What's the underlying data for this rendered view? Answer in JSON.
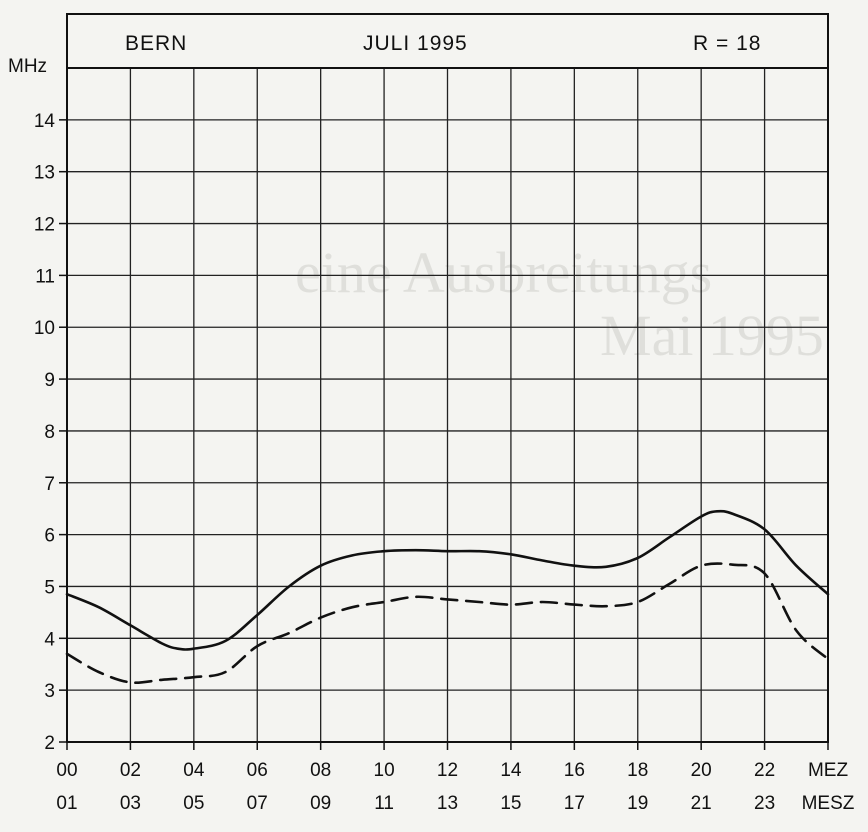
{
  "chart_data": {
    "type": "line",
    "header": {
      "station": "BERN",
      "period": "JULI 1995",
      "r_value": "R = 18"
    },
    "ylabel": "MHz",
    "ylim": [
      2,
      15
    ],
    "y_ticks": [
      "2",
      "3",
      "4",
      "5",
      "6",
      "7",
      "8",
      "9",
      "10",
      "11",
      "12",
      "13",
      "14"
    ],
    "x_ticks_mez": [
      "00",
      "02",
      "04",
      "06",
      "08",
      "10",
      "12",
      "14",
      "16",
      "18",
      "20",
      "22",
      "MEZ"
    ],
    "x_ticks_mesz": [
      "01",
      "03",
      "05",
      "07",
      "09",
      "11",
      "13",
      "15",
      "17",
      "19",
      "21",
      "23",
      "MESZ"
    ],
    "xlim": [
      0,
      24
    ],
    "grid": true,
    "series": [
      {
        "style": "solid",
        "x": [
          0,
          1,
          2,
          3,
          3.5,
          4,
          5,
          6,
          7,
          8,
          9,
          10,
          11,
          12,
          13,
          14,
          15,
          16,
          17,
          18,
          19,
          20,
          20.5,
          21,
          22,
          23,
          24
        ],
        "y": [
          4.85,
          4.6,
          4.25,
          3.9,
          3.8,
          3.8,
          3.95,
          4.45,
          5.0,
          5.4,
          5.6,
          5.68,
          5.7,
          5.68,
          5.68,
          5.62,
          5.5,
          5.4,
          5.38,
          5.55,
          5.95,
          6.35,
          6.45,
          6.4,
          6.1,
          5.4,
          4.85
        ]
      },
      {
        "style": "dashed",
        "x": [
          0,
          1,
          2,
          3,
          4,
          5,
          6,
          7,
          8,
          9,
          10,
          11,
          12,
          13,
          14,
          15,
          16,
          17,
          18,
          19,
          20,
          21,
          22,
          23,
          24
        ],
        "y": [
          3.7,
          3.35,
          3.15,
          3.2,
          3.25,
          3.35,
          3.85,
          4.1,
          4.4,
          4.6,
          4.7,
          4.8,
          4.75,
          4.7,
          4.65,
          4.7,
          4.65,
          4.62,
          4.7,
          5.05,
          5.4,
          5.42,
          5.25,
          4.15,
          3.6
        ]
      }
    ]
  }
}
